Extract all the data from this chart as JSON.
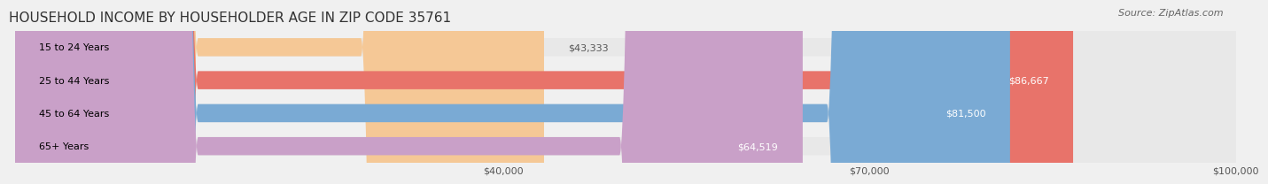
{
  "title": "HOUSEHOLD INCOME BY HOUSEHOLDER AGE IN ZIP CODE 35761",
  "source": "Source: ZipAtlas.com",
  "categories": [
    "15 to 24 Years",
    "25 to 44 Years",
    "45 to 64 Years",
    "65+ Years"
  ],
  "values": [
    43333,
    86667,
    81500,
    64519
  ],
  "colors": [
    "#f5c896",
    "#e8736a",
    "#7aaad4",
    "#c9a0c8"
  ],
  "bar_labels": [
    "$43,333",
    "$86,667",
    "$81,500",
    "$64,519"
  ],
  "xlim_min": 0,
  "xlim_max": 100000,
  "xticks": [
    40000,
    70000,
    100000
  ],
  "xtick_labels": [
    "$40,000",
    "$70,000",
    "$100,000"
  ],
  "background_color": "#f0f0f0",
  "bar_background_color": "#e8e8e8",
  "title_fontsize": 11,
  "source_fontsize": 8,
  "label_fontsize": 8,
  "tick_fontsize": 8,
  "bar_height": 0.55,
  "label_color_inside": "#ffffff",
  "label_color_outside": "#555555"
}
